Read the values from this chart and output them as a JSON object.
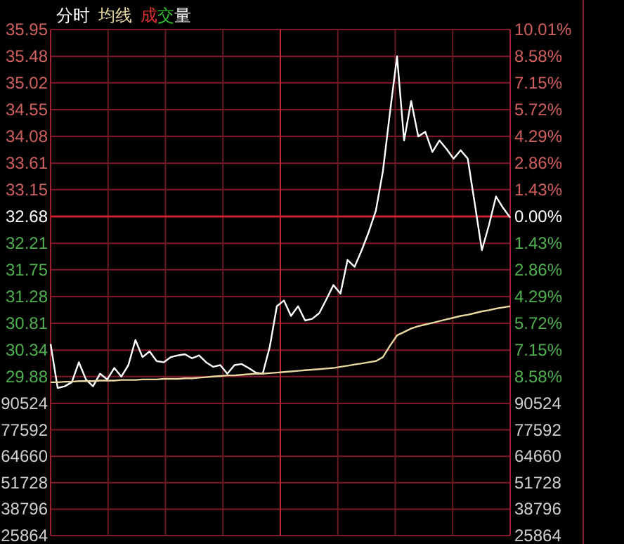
{
  "chart_data": [
    {
      "type": "line",
      "legend": "top left",
      "grid": true,
      "annotations": [
        "成交量"
      ],
      "ref_lines": [
        {
          "axis": "y",
          "value": 32.68,
          "color": "#d02030"
        }
      ],
      "categories": [
        null,
        null,
        null,
        null,
        null,
        null,
        null,
        null,
        null,
        null,
        null,
        null,
        null,
        null,
        null,
        null,
        null,
        null,
        null,
        null,
        null,
        null,
        null,
        null,
        null,
        null,
        null,
        null,
        null,
        null,
        null,
        null,
        null,
        null,
        null,
        null,
        null,
        null,
        null,
        null,
        null,
        null,
        null,
        null,
        null,
        null,
        null,
        null,
        null,
        null,
        null,
        null,
        null,
        null,
        null,
        null,
        null,
        null,
        null,
        null,
        null,
        null,
        null,
        null,
        null,
        null
      ],
      "ylim": [
        29.41,
        35.95
      ],
      "yticks": [
        29.88,
        30.34,
        30.81,
        31.28,
        31.75,
        32.21,
        32.68,
        33.15,
        33.61,
        34.08,
        34.55,
        35.02,
        35.48,
        35.95
      ],
      "y2lim": [
        -10.01,
        10.01
      ],
      "y2ticks": [
        {
          "value": -8.58,
          "label": "8.58%"
        },
        {
          "value": -7.15,
          "label": "7.15%"
        },
        {
          "value": -5.72,
          "label": "5.72%"
        },
        {
          "value": -4.29,
          "label": "4.29%"
        },
        {
          "value": -2.86,
          "label": "2.86%"
        },
        {
          "value": -1.43,
          "label": "1.43%"
        },
        {
          "value": 0,
          "label": "0.00%"
        },
        {
          "value": 1.43,
          "label": "1.43%"
        },
        {
          "value": 2.86,
          "label": "2.86%"
        },
        {
          "value": 4.29,
          "label": "4.29%"
        },
        {
          "value": 5.72,
          "label": "5.72%"
        },
        {
          "value": 7.15,
          "label": "7.15%"
        },
        {
          "value": 8.58,
          "label": "8.58%"
        },
        {
          "value": 10.01,
          "label": "10.01%"
        }
      ],
      "series": [
        {
          "name": "分时",
          "color": "#ffffff",
          "values": [
            30.45,
            29.68,
            29.71,
            29.78,
            30.13,
            29.83,
            29.71,
            29.93,
            29.83,
            30.03,
            29.88,
            30.08,
            30.52,
            30.22,
            30.32,
            30.15,
            30.13,
            30.22,
            30.25,
            30.27,
            30.2,
            30.25,
            30.13,
            30.05,
            30.08,
            29.93,
            30.08,
            30.1,
            30.03,
            29.95,
            29.93,
            30.4,
            31.11,
            31.21,
            30.94,
            31.11,
            30.86,
            30.89,
            30.99,
            31.23,
            31.48,
            31.33,
            31.92,
            31.8,
            32.09,
            32.41,
            32.78,
            33.47,
            34.5,
            35.48,
            34.01,
            34.7,
            34.08,
            34.16,
            33.81,
            34.01,
            33.86,
            33.69,
            33.84,
            33.69,
            32.9,
            32.09,
            32.53,
            33.03,
            32.83,
            32.66
          ]
        },
        {
          "name": "均线",
          "color": "#e8d8a0",
          "values": [
            29.78,
            29.78,
            29.79,
            29.79,
            29.8,
            29.8,
            29.8,
            29.81,
            29.81,
            29.81,
            29.82,
            29.82,
            29.82,
            29.83,
            29.83,
            29.83,
            29.84,
            29.84,
            29.84,
            29.85,
            29.85,
            29.86,
            29.87,
            29.88,
            29.89,
            29.9,
            29.9,
            29.91,
            29.92,
            29.93,
            29.93,
            29.94,
            29.95,
            29.96,
            29.97,
            29.98,
            29.99,
            30.0,
            30.01,
            30.02,
            30.03,
            30.05,
            30.07,
            30.09,
            30.11,
            30.13,
            30.15,
            30.22,
            30.42,
            30.6,
            30.66,
            30.72,
            30.76,
            30.79,
            30.82,
            30.85,
            30.88,
            30.91,
            30.94,
            30.96,
            30.99,
            31.02,
            31.04,
            31.07,
            31.09,
            31.11
          ]
        }
      ]
    },
    {
      "type": "bar",
      "grid": true,
      "categories": [
        null,
        null,
        null,
        null,
        null,
        null,
        null,
        null,
        null,
        null,
        null,
        null,
        null,
        null,
        null,
        null,
        null,
        null,
        null,
        null,
        null,
        null,
        null,
        null,
        null,
        null,
        null,
        null,
        null,
        null,
        null,
        null,
        null,
        null,
        null,
        null,
        null,
        null,
        null,
        null,
        null,
        null,
        null,
        null,
        null,
        null,
        null,
        null,
        null,
        null,
        null,
        null,
        null,
        null,
        null,
        null,
        null,
        null,
        null,
        null,
        null,
        null,
        null,
        null,
        null,
        null
      ],
      "values": [
        null,
        null,
        null,
        null,
        null,
        null,
        null,
        null,
        null,
        null,
        null,
        null,
        null,
        null,
        null,
        null,
        null,
        null,
        null,
        null,
        null,
        null,
        null,
        null,
        null,
        null,
        null,
        null,
        null,
        null,
        null,
        null,
        null,
        null,
        null,
        null,
        null,
        null,
        null,
        null,
        null,
        null,
        null,
        null,
        null,
        null,
        null,
        null,
        null,
        null,
        null,
        null,
        null,
        null,
        null,
        null,
        null,
        null,
        null,
        null,
        null,
        null,
        null,
        null,
        null,
        null
      ],
      "ylim": [
        25864,
        90524
      ],
      "yticks": [
        25864,
        38796,
        51728,
        64660,
        77592,
        90524
      ],
      "y2lim": [
        25864,
        90524
      ],
      "y2ticks": [
        25864,
        38796,
        51728,
        64660,
        77592,
        90524
      ]
    }
  ]
}
